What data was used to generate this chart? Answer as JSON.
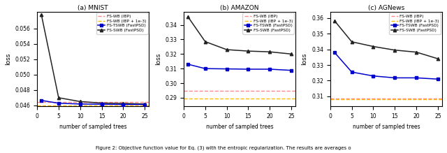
{
  "x": [
    1,
    5,
    10,
    15,
    20,
    25
  ],
  "mnist": {
    "fs_tswb": [
      0.04665,
      0.04628,
      0.04618,
      0.04615,
      0.04612,
      0.04612
    ],
    "fs_swb": [
      0.0578,
      0.047,
      0.0465,
      0.0463,
      0.04625,
      0.04618
    ],
    "fs_wb_ibp": 0.04648,
    "fs_wb_ibp_reg": 0.04602,
    "xlim": [
      0,
      26
    ],
    "ylim": [
      0.04585,
      0.0582
    ],
    "yticks": [
      0.046,
      0.048,
      0.05,
      0.052,
      0.054,
      0.056
    ],
    "title": "(a) MNIST"
  },
  "amazon": {
    "fs_tswb": [
      0.313,
      0.31,
      0.3098,
      0.3096,
      0.3096,
      0.3088
    ],
    "fs_swb": [
      0.3455,
      0.3285,
      0.323,
      0.322,
      0.3215,
      0.32
    ],
    "fs_wb_ibp": 0.295,
    "fs_wb_ibp_reg": 0.2893,
    "xlim": [
      0,
      26
    ],
    "ylim": [
      0.284,
      0.349
    ],
    "yticks": [
      0.29,
      0.3,
      0.31,
      0.32,
      0.33,
      0.34
    ],
    "title": "(b) AMAZON"
  },
  "agnews": {
    "fs_tswb": [
      0.338,
      0.3255,
      0.323,
      0.3218,
      0.3218,
      0.321
    ],
    "fs_swb": [
      0.3582,
      0.3448,
      0.3418,
      0.3395,
      0.3382,
      0.334
    ],
    "fs_wb_ibp": 0.3088,
    "fs_wb_ibp_reg": 0.3082,
    "xlim": [
      0,
      26
    ],
    "ylim": [
      0.3035,
      0.364
    ],
    "yticks": [
      0.31,
      0.32,
      0.33,
      0.34,
      0.35,
      0.36
    ],
    "title": "(c) AGNews"
  },
  "colors": {
    "fs_tswb": "#0000cc",
    "fs_swb": "#222222",
    "fs_wb_ibp": "#ff8888",
    "fs_wb_ibp_reg": "#ffbb00"
  },
  "legend_labels": [
    "FS-TSWB (FastPSD)",
    "FS-SWB (FastPSD)",
    "FS-WB (IBP)",
    "FS-WB (IBP + 1e-3)"
  ],
  "xlabel": "number of sampled trees",
  "ylabel": "loss",
  "caption": "Figure 2: Objective function value for Eq. (3) with the entropic regularization. The results are averages o"
}
